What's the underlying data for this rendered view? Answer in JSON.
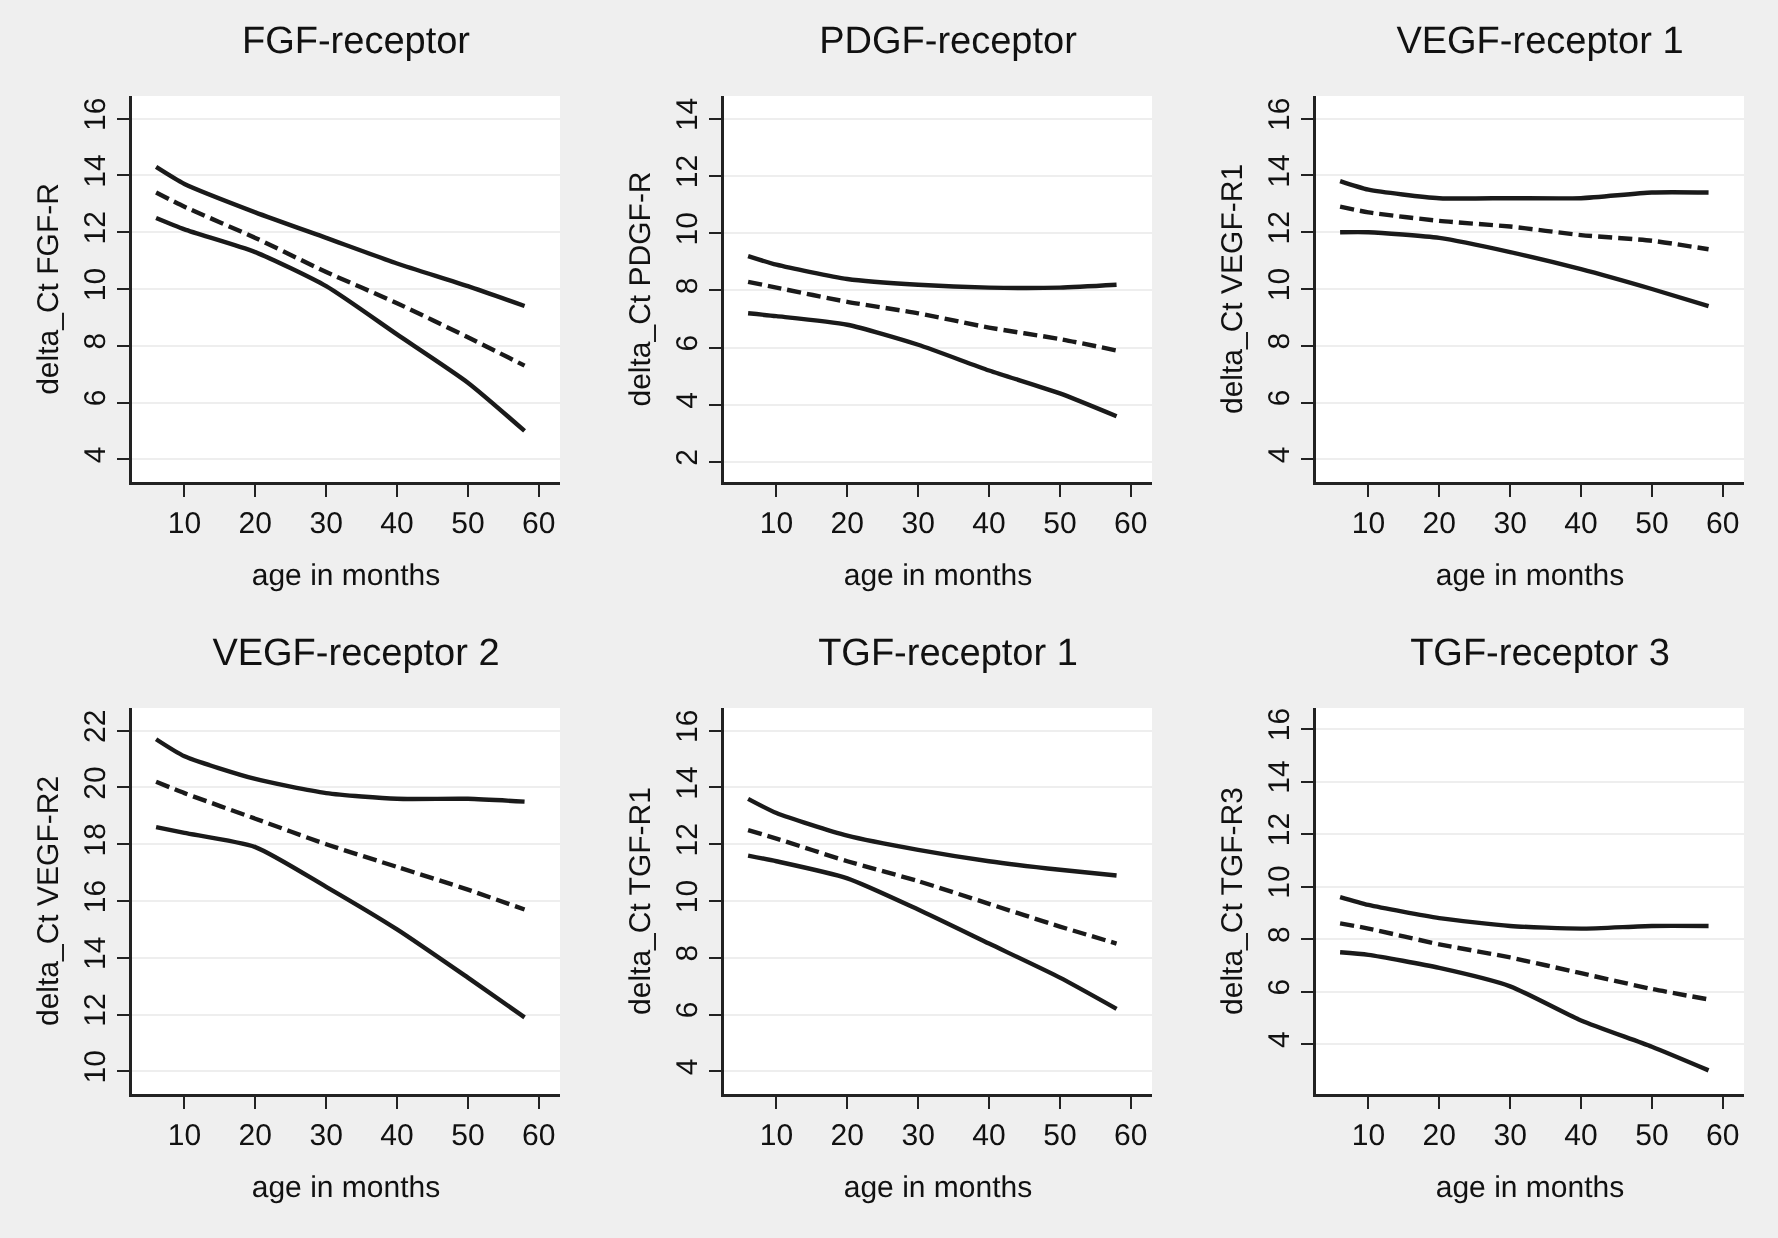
{
  "chart_data": [
    {
      "type": "line",
      "title": "FGF-receptor",
      "xlabel": "age in months",
      "ylabel": "delta_Ct FGF-R",
      "x": [
        6,
        10,
        20,
        30,
        40,
        50,
        58
      ],
      "xlim": [
        2.6,
        63
      ],
      "xticks": [
        10,
        20,
        30,
        40,
        50,
        60
      ],
      "ylim": [
        3.2,
        16.8
      ],
      "yticks": [
        4,
        6,
        8,
        10,
        12,
        14,
        16
      ],
      "grid": "y",
      "marker": "none",
      "series": [
        {
          "color": "#1a1a1a",
          "line_style": "solid",
          "values": [
            14.3,
            13.7,
            12.7,
            11.8,
            10.9,
            10.1,
            9.4
          ]
        },
        {
          "color": "#1a1a1a",
          "line_style": "dashed",
          "values": [
            13.4,
            12.9,
            11.8,
            10.6,
            9.5,
            8.3,
            7.3
          ]
        },
        {
          "color": "#1a1a1a",
          "line_style": "solid",
          "values": [
            12.5,
            12.1,
            11.3,
            10.1,
            8.4,
            6.7,
            5.0
          ]
        }
      ]
    },
    {
      "type": "line",
      "title": "PDGF-receptor",
      "xlabel": "age in months",
      "ylabel": "delta_Ct PDGF-R",
      "x": [
        6,
        10,
        20,
        30,
        40,
        50,
        58
      ],
      "xlim": [
        2.6,
        63
      ],
      "xticks": [
        10,
        20,
        30,
        40,
        50,
        60
      ],
      "ylim": [
        1.3,
        14.8
      ],
      "yticks": [
        2,
        4,
        6,
        8,
        10,
        12,
        14
      ],
      "grid": "y",
      "marker": "none",
      "series": [
        {
          "color": "#1a1a1a",
          "line_style": "solid",
          "values": [
            9.2,
            8.9,
            8.4,
            8.2,
            8.1,
            8.1,
            8.2
          ]
        },
        {
          "color": "#1a1a1a",
          "line_style": "dashed",
          "values": [
            8.3,
            8.1,
            7.6,
            7.2,
            6.7,
            6.3,
            5.9
          ]
        },
        {
          "color": "#1a1a1a",
          "line_style": "solid",
          "values": [
            7.2,
            7.1,
            6.8,
            6.1,
            5.2,
            4.4,
            3.6
          ]
        }
      ]
    },
    {
      "type": "line",
      "title": "VEGF-receptor 1",
      "xlabel": "age in months",
      "ylabel": "delta_Ct VEGF-R1",
      "x": [
        6,
        10,
        20,
        30,
        40,
        50,
        58
      ],
      "xlim": [
        2.6,
        63
      ],
      "xticks": [
        10,
        20,
        30,
        40,
        50,
        60
      ],
      "ylim": [
        3.2,
        16.8
      ],
      "yticks": [
        4,
        6,
        8,
        10,
        12,
        14,
        16
      ],
      "grid": "y",
      "marker": "none",
      "series": [
        {
          "color": "#1a1a1a",
          "line_style": "solid",
          "values": [
            13.8,
            13.5,
            13.2,
            13.2,
            13.2,
            13.4,
            13.4
          ]
        },
        {
          "color": "#1a1a1a",
          "line_style": "dashed",
          "values": [
            12.9,
            12.7,
            12.4,
            12.2,
            11.9,
            11.7,
            11.4
          ]
        },
        {
          "color": "#1a1a1a",
          "line_style": "solid",
          "values": [
            12.0,
            12.0,
            11.8,
            11.3,
            10.7,
            10.0,
            9.4
          ]
        }
      ]
    },
    {
      "type": "line",
      "title": "VEGF-receptor 2",
      "xlabel": "age in months",
      "ylabel": "delta_Ct VEGF-R2",
      "x": [
        6,
        10,
        20,
        30,
        40,
        50,
        58
      ],
      "xlim": [
        2.6,
        63
      ],
      "xticks": [
        10,
        20,
        30,
        40,
        50,
        60
      ],
      "ylim": [
        9.2,
        22.8
      ],
      "yticks": [
        10,
        12,
        14,
        16,
        18,
        20,
        22
      ],
      "grid": "y",
      "marker": "none",
      "series": [
        {
          "color": "#1a1a1a",
          "line_style": "solid",
          "values": [
            21.7,
            21.1,
            20.3,
            19.8,
            19.6,
            19.6,
            19.5
          ]
        },
        {
          "color": "#1a1a1a",
          "line_style": "dashed",
          "values": [
            20.2,
            19.8,
            18.9,
            18.0,
            17.2,
            16.4,
            15.7
          ]
        },
        {
          "color": "#1a1a1a",
          "line_style": "solid",
          "values": [
            18.6,
            18.4,
            17.9,
            16.5,
            15.0,
            13.3,
            11.9
          ]
        }
      ]
    },
    {
      "type": "line",
      "title": "TGF-receptor 1",
      "xlabel": "age in months",
      "ylabel": "delta_Ct TGF-R1",
      "x": [
        6,
        10,
        20,
        30,
        40,
        50,
        58
      ],
      "xlim": [
        2.6,
        63
      ],
      "xticks": [
        10,
        20,
        30,
        40,
        50,
        60
      ],
      "ylim": [
        3.2,
        16.8
      ],
      "yticks": [
        4,
        6,
        8,
        10,
        12,
        14,
        16
      ],
      "grid": "y",
      "marker": "none",
      "series": [
        {
          "color": "#1a1a1a",
          "line_style": "solid",
          "values": [
            13.6,
            13.1,
            12.3,
            11.8,
            11.4,
            11.1,
            10.9
          ]
        },
        {
          "color": "#1a1a1a",
          "line_style": "dashed",
          "values": [
            12.5,
            12.2,
            11.4,
            10.7,
            9.9,
            9.1,
            8.5
          ]
        },
        {
          "color": "#1a1a1a",
          "line_style": "solid",
          "values": [
            11.6,
            11.4,
            10.8,
            9.7,
            8.5,
            7.3,
            6.2
          ]
        }
      ]
    },
    {
      "type": "line",
      "title": "TGF-receptor 3",
      "xlabel": "age in months",
      "ylabel": "delta_Ct TGF-R3",
      "x": [
        6,
        10,
        20,
        30,
        40,
        50,
        58
      ],
      "xlim": [
        2.6,
        63
      ],
      "xticks": [
        10,
        20,
        30,
        40,
        50,
        60
      ],
      "ylim": [
        2.1,
        16.8
      ],
      "yticks": [
        4,
        6,
        8,
        10,
        12,
        14,
        16
      ],
      "grid": "y",
      "marker": "none",
      "series": [
        {
          "color": "#1a1a1a",
          "line_style": "solid",
          "values": [
            9.6,
            9.3,
            8.8,
            8.5,
            8.4,
            8.5,
            8.5
          ]
        },
        {
          "color": "#1a1a1a",
          "line_style": "dashed",
          "values": [
            8.6,
            8.4,
            7.8,
            7.3,
            6.7,
            6.1,
            5.7
          ]
        },
        {
          "color": "#1a1a1a",
          "line_style": "solid",
          "values": [
            7.5,
            7.4,
            6.9,
            6.2,
            4.9,
            3.9,
            3.0
          ]
        }
      ]
    }
  ]
}
